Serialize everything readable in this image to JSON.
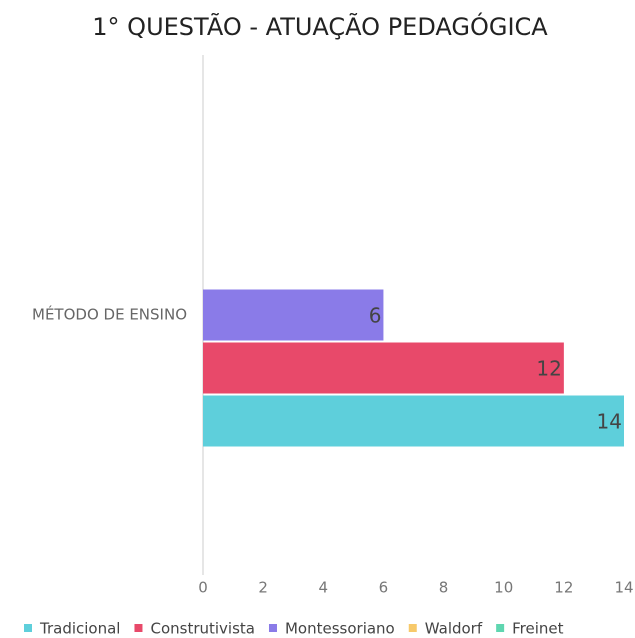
{
  "chart_data": {
    "type": "bar",
    "orientation": "horizontal",
    "title": "1° QUESTÃO - ATUAÇÃO PEDAGÓGICA",
    "categories": [
      "MÉTODO DE ENSINO"
    ],
    "series": [
      {
        "name": "Tradicional",
        "color": "#5ecfdb",
        "values": [
          14
        ]
      },
      {
        "name": "Construtivista",
        "color": "#e8496a",
        "values": [
          12
        ]
      },
      {
        "name": "Montessoriano",
        "color": "#8a7be8",
        "values": [
          6
        ]
      },
      {
        "name": "Waldorf",
        "color": "#f7c96a",
        "values": [
          null
        ]
      },
      {
        "name": "Freinet",
        "color": "#5fd6b0",
        "values": [
          null
        ]
      }
    ],
    "xlim": [
      0,
      14
    ],
    "xticks": [
      0,
      2,
      4,
      6,
      8,
      10,
      12,
      14
    ],
    "legend": "bottom"
  }
}
